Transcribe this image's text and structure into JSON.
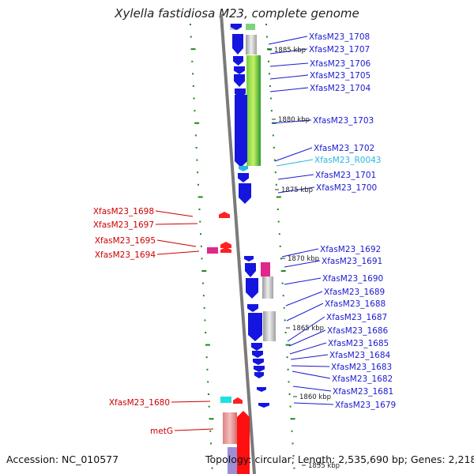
{
  "title": "Xylella fastidiosa M23, complete genome",
  "accession": "Accession: NC_010577",
  "topology": "Topology: circular; Length: 2,535,690 bp; Genes: 2,218",
  "colors": {
    "cds": "#1515e0",
    "rna_label": "#2ab6e6",
    "reverse_label": "#cc0000",
    "forward_label": "#1a1ad0",
    "backbone": "#7a7a7a",
    "tick": "#1a8a1a",
    "gc_high": "#2aa52a",
    "gc_low": "#c0c0c0",
    "magenta": "#e0288a"
  },
  "kbp_markers": [
    "1885 kbp",
    "1880 kbp",
    "1875 kbp",
    "1870 kbp",
    "1865 kbp",
    "1860 kbp",
    "1855 kbp"
  ],
  "forward_genes": [
    "XfasM23_1708",
    "XfasM23_1707",
    "XfasM23_1706",
    "XfasM23_1705",
    "XfasM23_1704",
    "XfasM23_1703",
    "XfasM23_1702",
    "XfasM23_R0043",
    "XfasM23_1701",
    "XfasM23_1700",
    "XfasM23_1692",
    "XfasM23_1691",
    "XfasM23_1690",
    "XfasM23_1689",
    "XfasM23_1688",
    "XfasM23_1687",
    "XfasM23_1686",
    "XfasM23_1685",
    "XfasM23_1684",
    "XfasM23_1683",
    "XfasM23_1682",
    "XfasM23_1681",
    "XfasM23_1679"
  ],
  "reverse_genes": [
    "XfasM23_1698",
    "XfasM23_1697",
    "XfasM23_1695",
    "XfasM23_1694",
    "XfasM23_1680",
    "metG"
  ]
}
